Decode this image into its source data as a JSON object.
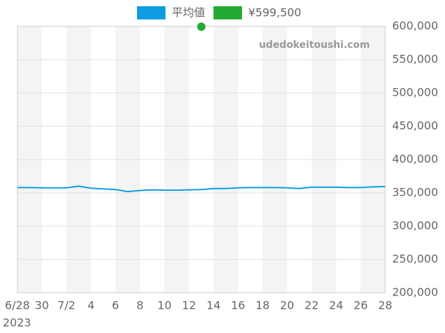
{
  "chart_data": {
    "type": "line",
    "categories": [
      "6/28",
      null,
      "30",
      null,
      "7/2",
      null,
      "4",
      null,
      "6",
      null,
      "8",
      null,
      "10",
      null,
      "12",
      null,
      "14",
      null,
      "16",
      null,
      "18",
      null,
      "20",
      null,
      "22",
      null,
      "24",
      null,
      "26",
      null,
      "28"
    ],
    "x_sublabel": "2023",
    "series": [
      {
        "name": "平均値",
        "color": "#0d9de0",
        "values": [
          358000,
          358000,
          357500,
          357500,
          357500,
          360000,
          357000,
          356000,
          355000,
          352000,
          353500,
          354500,
          354000,
          354000,
          354500,
          355000,
          356500,
          356500,
          357500,
          358000,
          358000,
          358000,
          357500,
          356500,
          358500,
          358500,
          358500,
          358000,
          358000,
          359000,
          359500
        ]
      },
      {
        "name": "¥599,500",
        "color": "#22aa33",
        "values": [
          null,
          null,
          null,
          null,
          null,
          null,
          null,
          null,
          null,
          null,
          null,
          null,
          null,
          null,
          null,
          599500,
          null,
          null,
          null,
          null,
          null,
          null,
          null,
          null,
          null,
          null,
          null,
          null,
          null,
          null,
          null
        ]
      }
    ],
    "ylim": [
      200000,
      600000
    ],
    "yticks": [
      {
        "value": 200000,
        "label": "200,000"
      },
      {
        "value": 250000,
        "label": "250,000"
      },
      {
        "value": 300000,
        "label": "300,000"
      },
      {
        "value": 350000,
        "label": "350,000"
      },
      {
        "value": 400000,
        "label": "400,000"
      },
      {
        "value": 450000,
        "label": "450,000"
      },
      {
        "value": 500000,
        "label": "500,000"
      },
      {
        "value": 550000,
        "label": "550,000"
      },
      {
        "value": 600000,
        "label": "600,000"
      }
    ],
    "grid": true,
    "watermark": "udedokeitoushi.com"
  }
}
